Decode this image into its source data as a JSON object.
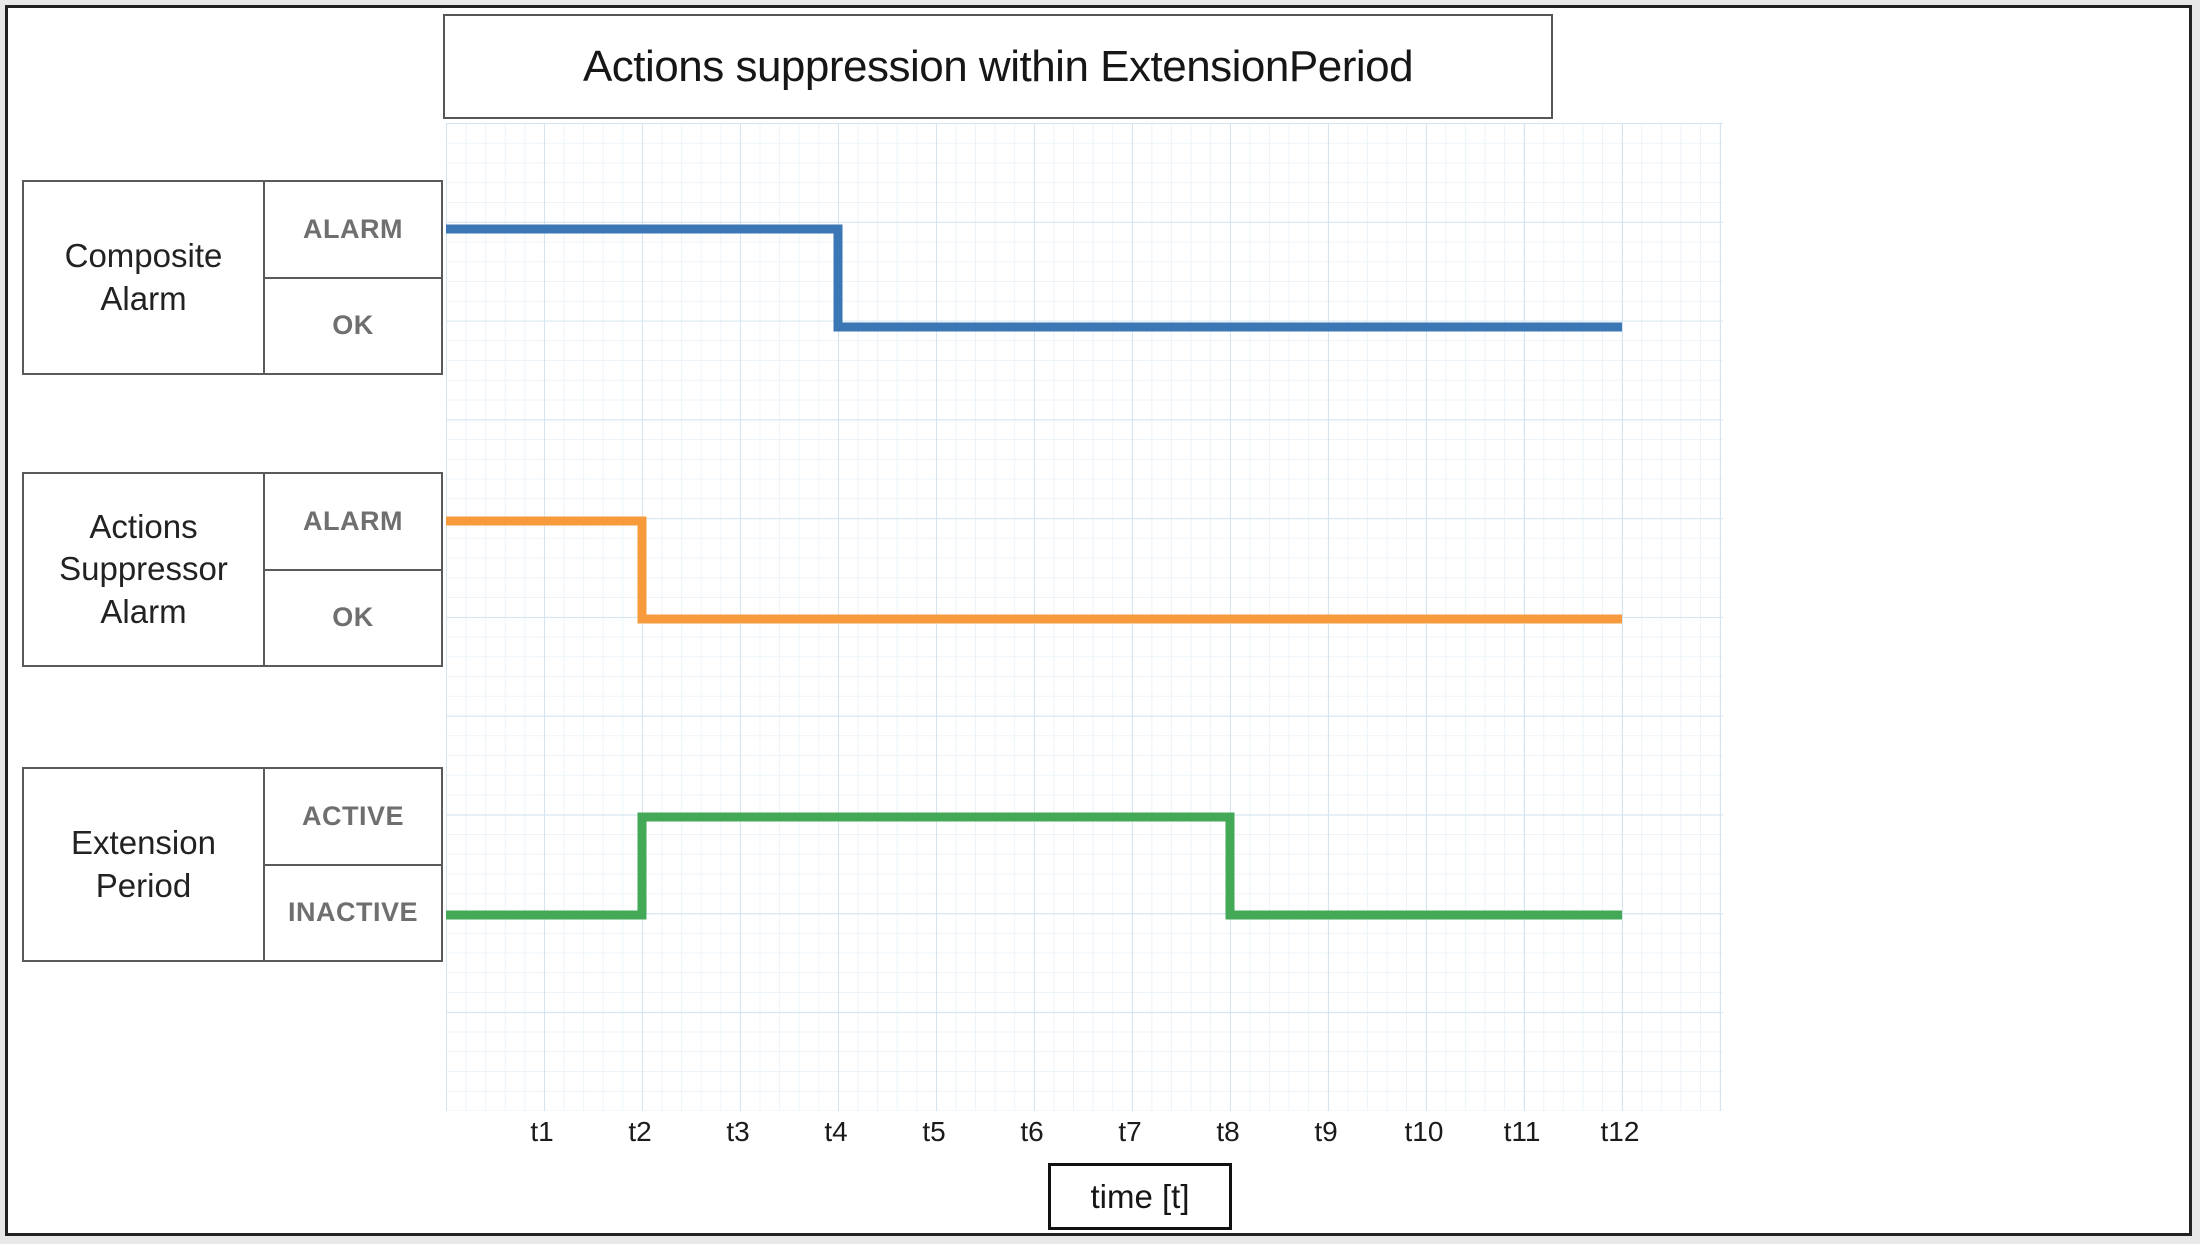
{
  "title": "Actions suppression within ExtensionPeriod",
  "rows": [
    {
      "name": "Composite Alarm",
      "top_label": "ALARM",
      "bottom_label": "OK"
    },
    {
      "name": "Actions Suppressor Alarm",
      "top_label": "ALARM",
      "bottom_label": "OK"
    },
    {
      "name": "Extension Period",
      "top_label": "ACTIVE",
      "bottom_label": "INACTIVE"
    }
  ],
  "x_axis": {
    "label": "time [t]"
  },
  "colors": {
    "composite_alarm_line": "#3b76b5",
    "actions_suppressor_line": "#f79a3b",
    "extension_period_line": "#43a956",
    "grid_major": "#d4e5f1",
    "grid_minor": "#ecf4f9",
    "box_border": "#5a5a5a",
    "state_text": "#6f6f6f"
  },
  "chart_data": {
    "type": "line",
    "variant": "step-timeline",
    "title": "Actions suppression within ExtensionPeriod",
    "xlabel": "time [t]",
    "x_ticks": [
      "t1",
      "t2",
      "t3",
      "t4",
      "t5",
      "t6",
      "t7",
      "t8",
      "t9",
      "t10",
      "t11",
      "t12"
    ],
    "x_range": [
      "t0",
      "t12"
    ],
    "grid": true,
    "legend_position": "left-row-labels",
    "series": [
      {
        "name": "Composite Alarm",
        "color": "#3b76b5",
        "levels": [
          "ALARM",
          "OK"
        ],
        "segments": [
          {
            "from": "t0",
            "to": "t4",
            "state": "ALARM"
          },
          {
            "from": "t4",
            "to": "t12",
            "state": "OK"
          }
        ]
      },
      {
        "name": "Actions Suppressor Alarm",
        "color": "#f79a3b",
        "levels": [
          "ALARM",
          "OK"
        ],
        "segments": [
          {
            "from": "t0",
            "to": "t2",
            "state": "ALARM"
          },
          {
            "from": "t2",
            "to": "t12",
            "state": "OK"
          }
        ]
      },
      {
        "name": "Extension Period",
        "color": "#43a956",
        "levels": [
          "ACTIVE",
          "INACTIVE"
        ],
        "segments": [
          {
            "from": "t0",
            "to": "t2",
            "state": "INACTIVE"
          },
          {
            "from": "t2",
            "to": "t8",
            "state": "ACTIVE"
          },
          {
            "from": "t8",
            "to": "t12",
            "state": "INACTIVE"
          }
        ]
      }
    ]
  }
}
